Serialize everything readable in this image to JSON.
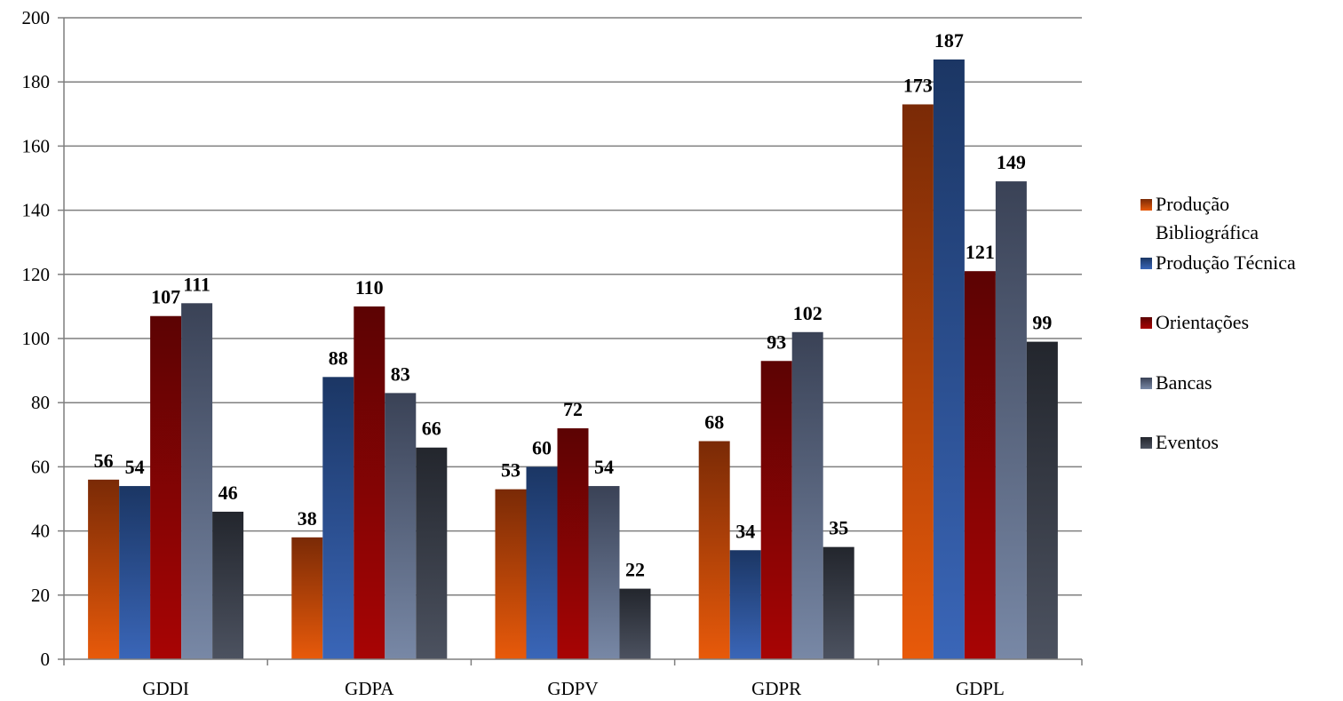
{
  "chart_data": {
    "type": "bar",
    "categories": [
      "GDDI",
      "GDPA",
      "GDPV",
      "GDPR",
      "GDPL"
    ],
    "series": [
      {
        "name": "Produção Bibliográfica",
        "legend_lines": [
          "Produção",
          "Bibliográfica"
        ],
        "values": [
          56,
          38,
          53,
          68,
          173
        ],
        "color_light": "#e85a0a",
        "color_dark": "#7a2a06"
      },
      {
        "name": "Produção Técnica",
        "legend_lines": [
          "Produção Técnica"
        ],
        "values": [
          54,
          88,
          60,
          34,
          187
        ],
        "color_light": "#3a66b8",
        "color_dark": "#1b3664"
      },
      {
        "name": "Orientações",
        "legend_lines": [
          "Orientações"
        ],
        "values": [
          107,
          110,
          72,
          93,
          121
        ],
        "color_light": "#a80404",
        "color_dark": "#5c0303"
      },
      {
        "name": "Bancas",
        "legend_lines": [
          "Bancas"
        ],
        "values": [
          111,
          83,
          54,
          102,
          149
        ],
        "color_light": "#7888a6",
        "color_dark": "#3a4256"
      },
      {
        "name": "Eventos",
        "legend_lines": [
          "Eventos"
        ],
        "values": [
          46,
          66,
          22,
          35,
          99
        ],
        "color_light": "#4c5260",
        "color_dark": "#23262d"
      }
    ],
    "ylim": [
      0,
      200
    ],
    "y_ticks": [
      0,
      20,
      40,
      60,
      80,
      100,
      120,
      140,
      160,
      180,
      200
    ],
    "grid": true,
    "legend_position": "right",
    "data_labels": true
  }
}
